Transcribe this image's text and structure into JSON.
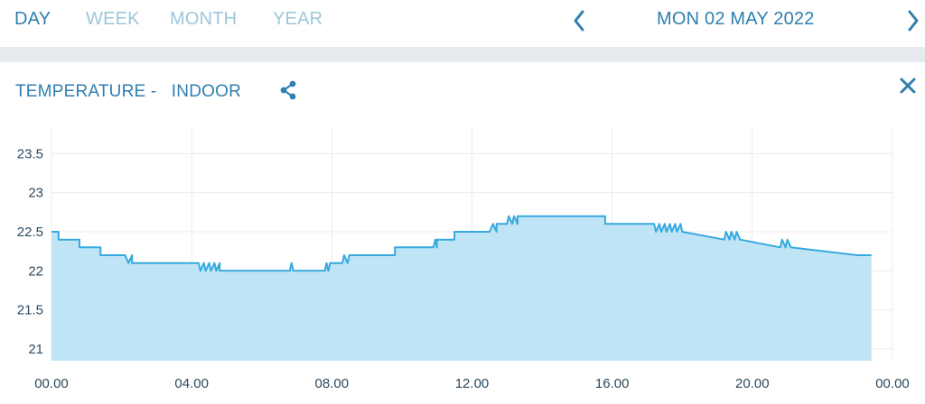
{
  "periods": [
    {
      "label": "DAY",
      "active": true
    },
    {
      "label": "WEEK",
      "active": false
    },
    {
      "label": "MONTH",
      "active": false
    },
    {
      "label": "YEAR",
      "active": false
    }
  ],
  "date": "MON 02 MAY 2022",
  "panel": {
    "title": "TEMPERATURE -   INDOOR",
    "share_icon": "share-icon",
    "close_icon": "close-icon"
  },
  "colors": {
    "accent": "#2f7fb0",
    "inactive_tab": "#9cc6dd",
    "line": "#36a9df",
    "fill": "#bfe4f6"
  },
  "chart_data": {
    "type": "area",
    "title": "",
    "xlabel": "",
    "ylabel": "",
    "x_ticks": [
      "00.00",
      "04.00",
      "08.00",
      "12.00",
      "16.00",
      "20.00",
      "00.00"
    ],
    "y_ticks": [
      "23.5",
      "23",
      "22.5",
      "22",
      "21.5",
      "21"
    ],
    "xlim_hours": [
      0,
      24
    ],
    "ylim": [
      20.85,
      23.85
    ],
    "grid": true,
    "series": [
      {
        "x_hours": [
          0.0,
          0.2,
          0.2,
          0.8,
          0.8,
          1.4,
          1.4,
          2.1,
          2.2,
          2.3,
          2.3,
          4.2,
          4.25,
          4.35,
          4.4,
          4.5,
          4.55,
          4.65,
          4.7,
          4.8,
          4.8,
          6.8,
          6.85,
          6.9,
          6.9,
          7.8,
          7.85,
          7.9,
          7.95,
          8.0,
          8.0,
          8.3,
          8.35,
          8.45,
          8.5,
          8.5,
          9.8,
          9.8,
          10.9,
          10.95,
          11.0,
          11.0,
          11.5,
          11.5,
          12.5,
          12.6,
          12.7,
          12.7,
          13.0,
          13.05,
          13.15,
          13.2,
          13.3,
          13.3,
          15.8,
          15.8,
          17.2,
          17.25,
          17.35,
          17.4,
          17.5,
          17.55,
          17.65,
          17.7,
          17.8,
          17.85,
          17.95,
          18.0,
          18.0,
          19.2,
          19.25,
          19.35,
          19.4,
          19.5,
          19.55,
          19.65,
          19.65,
          20.8,
          20.85,
          20.95,
          21.0,
          21.1,
          21.1,
          23.0,
          23.0,
          23.4
        ],
        "y": [
          22.5,
          22.5,
          22.4,
          22.4,
          22.3,
          22.3,
          22.2,
          22.2,
          22.1,
          22.2,
          22.1,
          22.1,
          22.0,
          22.1,
          22.0,
          22.1,
          22.0,
          22.1,
          22.0,
          22.1,
          22.0,
          22.0,
          22.1,
          22.0,
          22.0,
          22.0,
          22.1,
          22.0,
          22.1,
          22.1,
          22.1,
          22.1,
          22.2,
          22.1,
          22.2,
          22.2,
          22.2,
          22.3,
          22.3,
          22.4,
          22.3,
          22.4,
          22.4,
          22.5,
          22.5,
          22.6,
          22.5,
          22.6,
          22.6,
          22.7,
          22.6,
          22.7,
          22.6,
          22.7,
          22.7,
          22.6,
          22.6,
          22.5,
          22.6,
          22.5,
          22.6,
          22.5,
          22.6,
          22.5,
          22.6,
          22.5,
          22.6,
          22.5,
          22.5,
          22.4,
          22.5,
          22.4,
          22.5,
          22.4,
          22.5,
          22.4,
          22.4,
          22.3,
          22.4,
          22.3,
          22.4,
          22.3,
          22.3,
          22.2,
          22.2,
          22.2
        ]
      }
    ]
  }
}
